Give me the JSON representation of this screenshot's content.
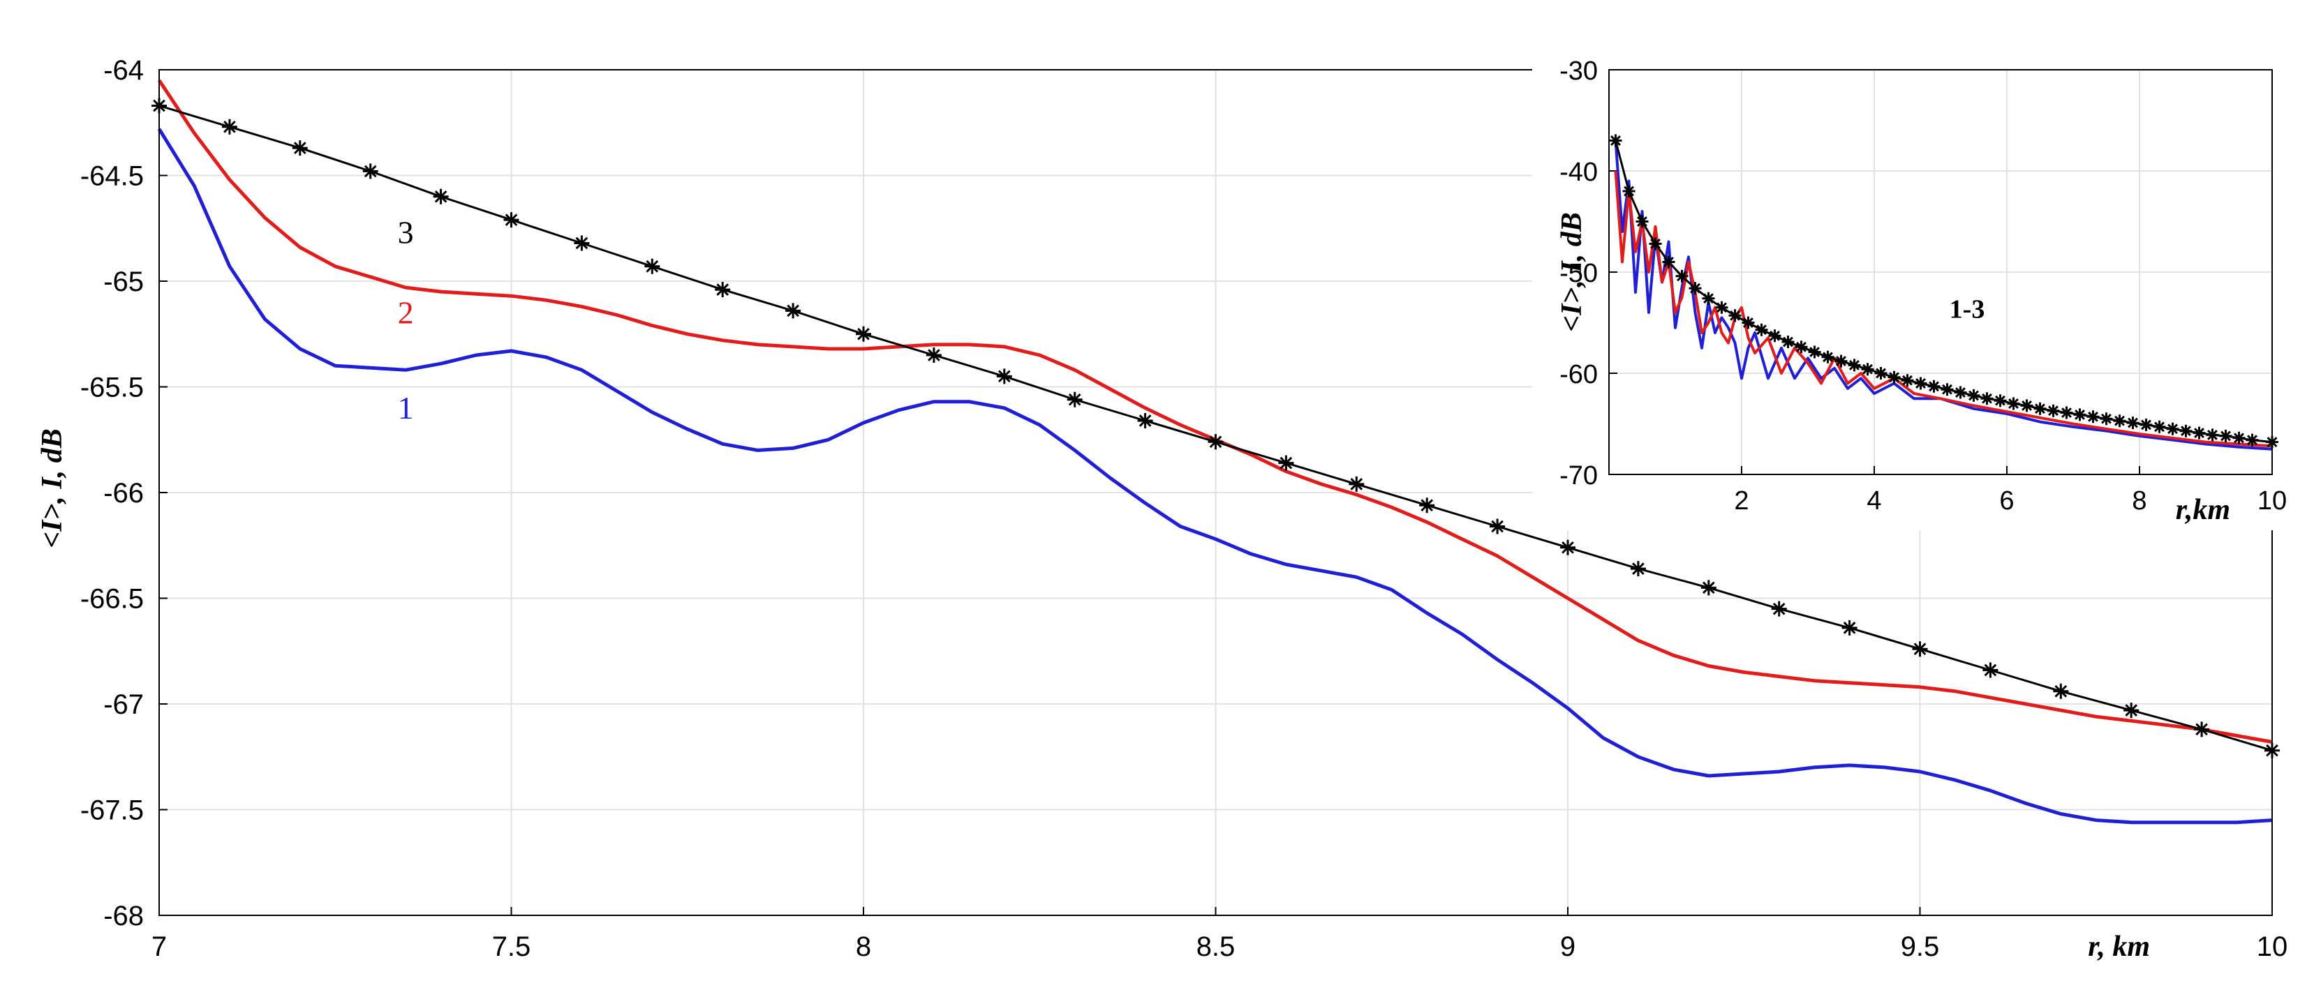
{
  "chart_data": [
    {
      "id": "main",
      "type": "line",
      "title": "",
      "xlabel": "r, km",
      "ylabel": "<I>, I, dB",
      "xlim": [
        7,
        10
      ],
      "ylim": [
        -68,
        -64
      ],
      "xticks": [
        7,
        7.5,
        8,
        8.5,
        9,
        9.5,
        10
      ],
      "xtick_labels": [
        "7",
        "7.5",
        "8",
        "8.5",
        "9",
        "9.5",
        "10"
      ],
      "yticks": [
        -64,
        -64.5,
        -65,
        -65.5,
        -66,
        -66.5,
        -67,
        -67.5,
        -68
      ],
      "ytick_labels": [
        "-64",
        "-64.5",
        "-65",
        "-65.5",
        "-66",
        "-66.5",
        "-67",
        "-67.5",
        "-68"
      ],
      "grid": true,
      "series": [
        {
          "name": "1",
          "color": "#1f1fd6",
          "marker": "none",
          "x": [
            7.0,
            7.05,
            7.1,
            7.15,
            7.2,
            7.25,
            7.3,
            7.35,
            7.4,
            7.45,
            7.5,
            7.55,
            7.6,
            7.65,
            7.7,
            7.75,
            7.8,
            7.85,
            7.9,
            7.95,
            8.0,
            8.05,
            8.1,
            8.15,
            8.2,
            8.25,
            8.3,
            8.35,
            8.4,
            8.45,
            8.5,
            8.55,
            8.6,
            8.65,
            8.7,
            8.75,
            8.8,
            8.85,
            8.9,
            8.95,
            9.0,
            9.05,
            9.1,
            9.15,
            9.2,
            9.25,
            9.3,
            9.35,
            9.4,
            9.45,
            9.5,
            9.55,
            9.6,
            9.65,
            9.7,
            9.75,
            9.8,
            9.85,
            9.9,
            9.95,
            10.0
          ],
          "y": [
            -64.28,
            -64.55,
            -64.93,
            -65.18,
            -65.32,
            -65.4,
            -65.41,
            -65.42,
            -65.39,
            -65.35,
            -65.33,
            -65.36,
            -65.42,
            -65.52,
            -65.62,
            -65.7,
            -65.77,
            -65.8,
            -65.79,
            -65.75,
            -65.67,
            -65.61,
            -65.57,
            -65.57,
            -65.6,
            -65.68,
            -65.8,
            -65.93,
            -66.05,
            -66.16,
            -66.22,
            -66.29,
            -66.34,
            -66.37,
            -66.4,
            -66.46,
            -66.57,
            -66.67,
            -66.79,
            -66.9,
            -67.02,
            -67.16,
            -67.25,
            -67.31,
            -67.34,
            -67.33,
            -67.32,
            -67.3,
            -67.29,
            -67.3,
            -67.32,
            -67.36,
            -67.41,
            -67.47,
            -67.52,
            -67.55,
            -67.56,
            -67.56,
            -67.56,
            -67.56,
            -67.55
          ]
        },
        {
          "name": "2",
          "color": "#e21b1b",
          "marker": "none",
          "x": [
            7.0,
            7.05,
            7.1,
            7.15,
            7.2,
            7.25,
            7.3,
            7.35,
            7.4,
            7.45,
            7.5,
            7.55,
            7.6,
            7.65,
            7.7,
            7.75,
            7.8,
            7.85,
            7.9,
            7.95,
            8.0,
            8.05,
            8.1,
            8.15,
            8.2,
            8.25,
            8.3,
            8.35,
            8.4,
            8.45,
            8.5,
            8.55,
            8.6,
            8.65,
            8.7,
            8.75,
            8.8,
            8.85,
            8.9,
            8.95,
            9.0,
            9.05,
            9.1,
            9.15,
            9.2,
            9.25,
            9.3,
            9.35,
            9.4,
            9.45,
            9.5,
            9.55,
            9.6,
            9.65,
            9.7,
            9.75,
            9.8,
            9.85,
            9.9,
            9.95,
            10.0
          ],
          "y": [
            -64.05,
            -64.3,
            -64.52,
            -64.7,
            -64.84,
            -64.93,
            -64.98,
            -65.03,
            -65.05,
            -65.06,
            -65.07,
            -65.09,
            -65.12,
            -65.16,
            -65.21,
            -65.25,
            -65.28,
            -65.3,
            -65.31,
            -65.32,
            -65.32,
            -65.31,
            -65.3,
            -65.3,
            -65.31,
            -65.35,
            -65.42,
            -65.51,
            -65.6,
            -65.68,
            -65.75,
            -65.82,
            -65.9,
            -65.96,
            -66.01,
            -66.07,
            -66.14,
            -66.22,
            -66.3,
            -66.4,
            -66.5,
            -66.6,
            -66.7,
            -66.77,
            -66.82,
            -66.85,
            -66.87,
            -66.89,
            -66.9,
            -66.91,
            -66.92,
            -66.94,
            -66.97,
            -67.0,
            -67.03,
            -67.06,
            -67.08,
            -67.1,
            -67.12,
            -67.15,
            -67.18
          ]
        },
        {
          "name": "3",
          "color": "#000000",
          "marker": "asterisk",
          "x": [
            7.0,
            7.1,
            7.2,
            7.3,
            7.4,
            7.5,
            7.6,
            7.7,
            7.8,
            7.9,
            8.0,
            8.1,
            8.2,
            8.3,
            8.4,
            8.5,
            8.6,
            8.7,
            8.8,
            8.9,
            9.0,
            9.1,
            9.2,
            9.3,
            9.4,
            9.5,
            9.6,
            9.7,
            9.8,
            9.9,
            10.0
          ],
          "y": [
            -64.17,
            -64.27,
            -64.37,
            -64.48,
            -64.6,
            -64.71,
            -64.82,
            -64.93,
            -65.04,
            -65.14,
            -65.25,
            -65.35,
            -65.45,
            -65.56,
            -65.66,
            -65.76,
            -65.86,
            -65.96,
            -66.06,
            -66.16,
            -66.26,
            -66.36,
            -66.45,
            -66.55,
            -66.64,
            -66.74,
            -66.84,
            -66.94,
            -67.03,
            -67.12,
            -67.22
          ]
        }
      ],
      "annotations": [
        {
          "text": "1",
          "x": 7.35,
          "y": -65.65,
          "color": "#1f1fd6"
        },
        {
          "text": "2",
          "x": 7.35,
          "y": -65.2,
          "color": "#e21b1b"
        },
        {
          "text": "3",
          "x": 7.35,
          "y": -64.82,
          "color": "#000000"
        }
      ]
    },
    {
      "id": "inset",
      "type": "line",
      "title": "",
      "xlabel": "r,km",
      "ylabel": "<I>, I, dB",
      "xlim": [
        0,
        10
      ],
      "ylim": [
        -70,
        -30
      ],
      "xticks": [
        2,
        4,
        6,
        8,
        10
      ],
      "xtick_labels": [
        "2",
        "4",
        "6",
        "8",
        "10"
      ],
      "yticks": [
        -30,
        -40,
        -50,
        -60,
        -70
      ],
      "ytick_labels": [
        "-30",
        "-40",
        "-50",
        "-60",
        "-70"
      ],
      "grid": true,
      "series": [
        {
          "name": "1",
          "color": "#1f1fd6",
          "marker": "none",
          "x": [
            0.1,
            0.2,
            0.3,
            0.4,
            0.5,
            0.6,
            0.7,
            0.8,
            0.9,
            1.0,
            1.1,
            1.2,
            1.3,
            1.4,
            1.5,
            1.6,
            1.7,
            1.8,
            1.9,
            2.0,
            2.1,
            2.2,
            2.4,
            2.6,
            2.8,
            3.0,
            3.2,
            3.4,
            3.6,
            3.8,
            4.0,
            4.3,
            4.6,
            5.0,
            5.5,
            6.0,
            6.5,
            7.0,
            7.5,
            8.0,
            8.5,
            9.0,
            9.5,
            10.0
          ],
          "y": [
            -37.0,
            -46.0,
            -41.0,
            -52.0,
            -44.0,
            -54.0,
            -46.5,
            -51.0,
            -47.0,
            -55.5,
            -51.5,
            -48.5,
            -54.0,
            -57.5,
            -53.0,
            -56.0,
            -54.5,
            -55.5,
            -57.0,
            -60.5,
            -57.5,
            -56.0,
            -60.5,
            -57.5,
            -60.5,
            -58.5,
            -60.5,
            -59.5,
            -61.5,
            -60.5,
            -62.0,
            -61.0,
            -62.5,
            -62.5,
            -63.5,
            -64.0,
            -64.8,
            -65.3,
            -65.7,
            -66.2,
            -66.6,
            -67.0,
            -67.3,
            -67.5
          ]
        },
        {
          "name": "2",
          "color": "#e21b1b",
          "marker": "none",
          "x": [
            0.1,
            0.2,
            0.3,
            0.4,
            0.5,
            0.6,
            0.7,
            0.8,
            0.9,
            1.0,
            1.1,
            1.2,
            1.3,
            1.4,
            1.5,
            1.6,
            1.7,
            1.8,
            1.9,
            2.0,
            2.1,
            2.2,
            2.4,
            2.6,
            2.8,
            3.0,
            3.2,
            3.4,
            3.6,
            3.8,
            4.0,
            4.3,
            4.6,
            5.0,
            5.5,
            6.0,
            6.5,
            7.0,
            7.5,
            8.0,
            8.5,
            9.0,
            9.5,
            10.0
          ],
          "y": [
            -40.0,
            -49.0,
            -42.0,
            -48.0,
            -45.0,
            -50.0,
            -45.5,
            -51.0,
            -49.0,
            -54.0,
            -52.5,
            -49.0,
            -52.0,
            -56.0,
            -55.0,
            -53.5,
            -56.0,
            -57.0,
            -54.5,
            -53.5,
            -56.5,
            -58.0,
            -56.5,
            -60.0,
            -57.5,
            -59.0,
            -61.0,
            -58.5,
            -61.0,
            -60.0,
            -61.5,
            -60.5,
            -62.0,
            -62.5,
            -63.2,
            -63.8,
            -64.4,
            -65.0,
            -65.5,
            -66.0,
            -66.4,
            -66.8,
            -67.0,
            -67.2
          ]
        },
        {
          "name": "3",
          "color": "#000000",
          "marker": "asterisk",
          "x": [
            0.1,
            0.3,
            0.5,
            0.7,
            0.9,
            1.1,
            1.3,
            1.5,
            1.7,
            1.9,
            2.1,
            2.3,
            2.5,
            2.7,
            2.9,
            3.1,
            3.3,
            3.5,
            3.7,
            3.9,
            4.1,
            4.3,
            4.5,
            4.7,
            4.9,
            5.1,
            5.3,
            5.5,
            5.7,
            5.9,
            6.1,
            6.3,
            6.5,
            6.7,
            6.9,
            7.1,
            7.3,
            7.5,
            7.7,
            7.9,
            8.1,
            8.3,
            8.5,
            8.7,
            8.9,
            9.1,
            9.3,
            9.5,
            9.7,
            10.0
          ],
          "y": [
            -37.0,
            -42.0,
            -45.0,
            -47.2,
            -49.0,
            -50.4,
            -51.6,
            -52.6,
            -53.5,
            -54.3,
            -55.0,
            -55.7,
            -56.3,
            -56.9,
            -57.4,
            -57.9,
            -58.4,
            -58.8,
            -59.2,
            -59.6,
            -60.0,
            -60.4,
            -60.7,
            -61.0,
            -61.3,
            -61.6,
            -61.9,
            -62.2,
            -62.5,
            -62.7,
            -63.0,
            -63.2,
            -63.5,
            -63.7,
            -63.9,
            -64.1,
            -64.3,
            -64.5,
            -64.7,
            -64.9,
            -65.1,
            -65.3,
            -65.5,
            -65.7,
            -65.9,
            -66.1,
            -66.2,
            -66.4,
            -66.6,
            -66.8
          ]
        }
      ],
      "annotations": [
        {
          "text": "1-3",
          "x": 5.4,
          "y": -54.5,
          "color": "#000000"
        }
      ]
    }
  ]
}
